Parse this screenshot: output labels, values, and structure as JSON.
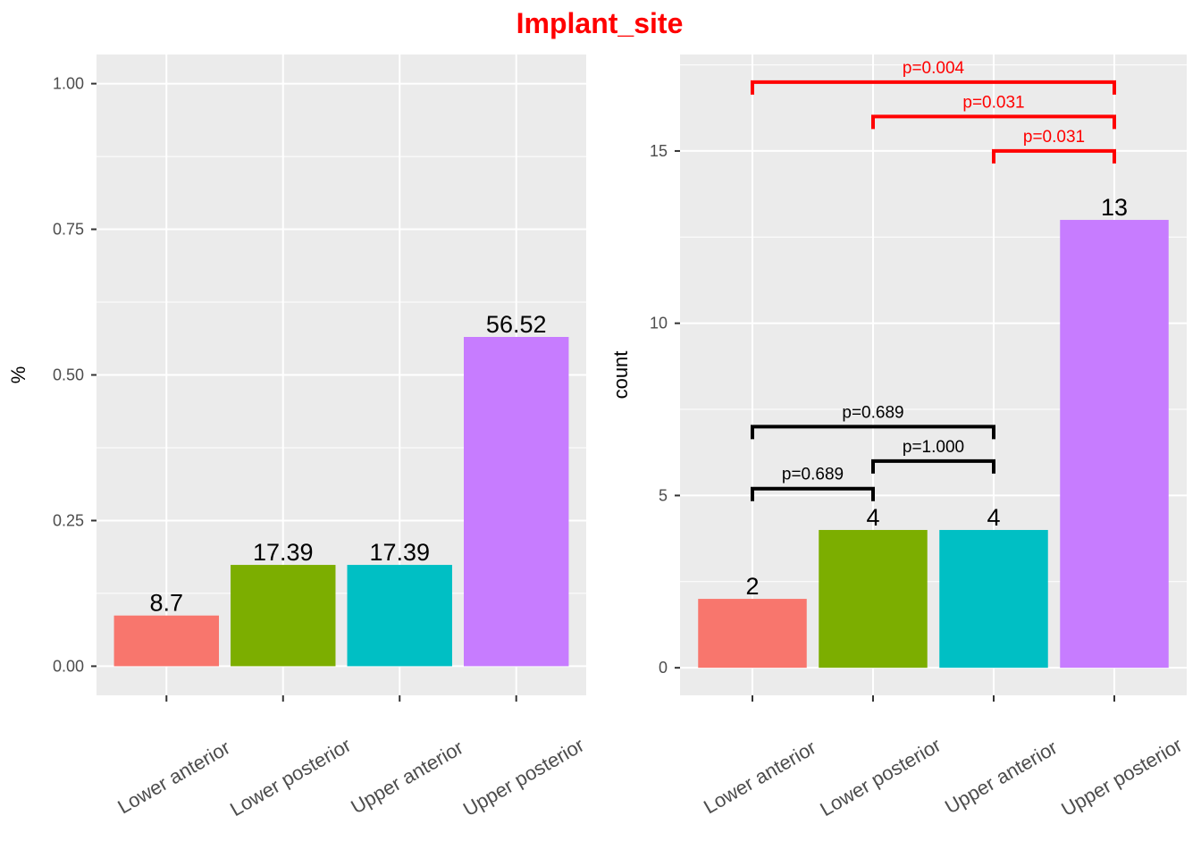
{
  "title": "Implant_site",
  "colors": {
    "title": "#ff0000",
    "panel_bg": "#ebebeb",
    "grid": "#ffffff",
    "sig_bracket": "#ff0000",
    "ns_bracket": "#000000",
    "bars": [
      "#f8766d",
      "#7cae00",
      "#00bfc4",
      "#c77cff"
    ]
  },
  "chart_data": [
    {
      "type": "bar",
      "categories": [
        "Lower anterior",
        "Lower posterior",
        "Upper anterior",
        "Upper posterior"
      ],
      "values": [
        0.087,
        0.1739,
        0.1739,
        0.5652
      ],
      "data_labels": [
        "8.7",
        "17.39",
        "17.39",
        "56.52"
      ],
      "xlabel": "",
      "ylabel": "%",
      "ylim": [
        -0.05,
        1.05
      ],
      "yticks": [
        0,
        0.25,
        0.5,
        0.75,
        1
      ],
      "ytick_labels": [
        "0.00",
        "0.25",
        "0.50",
        "0.75",
        "1.00"
      ],
      "grid": true,
      "comparisons": []
    },
    {
      "type": "bar",
      "categories": [
        "Lower anterior",
        "Lower posterior",
        "Upper anterior",
        "Upper posterior"
      ],
      "values": [
        2,
        4,
        4,
        13
      ],
      "data_labels": [
        "2",
        "4",
        "4",
        "13"
      ],
      "xlabel": "",
      "ylabel": "count",
      "ylim": [
        -0.8,
        17.8
      ],
      "yticks": [
        0,
        5,
        10,
        15
      ],
      "ytick_labels": [
        "0",
        "5",
        "10",
        "15"
      ],
      "grid": true,
      "comparisons": [
        {
          "from": 0,
          "to": 1,
          "y": 5.2,
          "label": "p=0.689",
          "significant": false
        },
        {
          "from": 1,
          "to": 2,
          "y": 6.0,
          "label": "p=1.000",
          "significant": false
        },
        {
          "from": 0,
          "to": 2,
          "y": 7.0,
          "label": "p=0.689",
          "significant": false
        },
        {
          "from": 2,
          "to": 3,
          "y": 15.0,
          "label": "p=0.031",
          "significant": true
        },
        {
          "from": 1,
          "to": 3,
          "y": 16.0,
          "label": "p=0.031",
          "significant": true
        },
        {
          "from": 0,
          "to": 3,
          "y": 17.0,
          "label": "p=0.004",
          "significant": true
        }
      ]
    }
  ]
}
